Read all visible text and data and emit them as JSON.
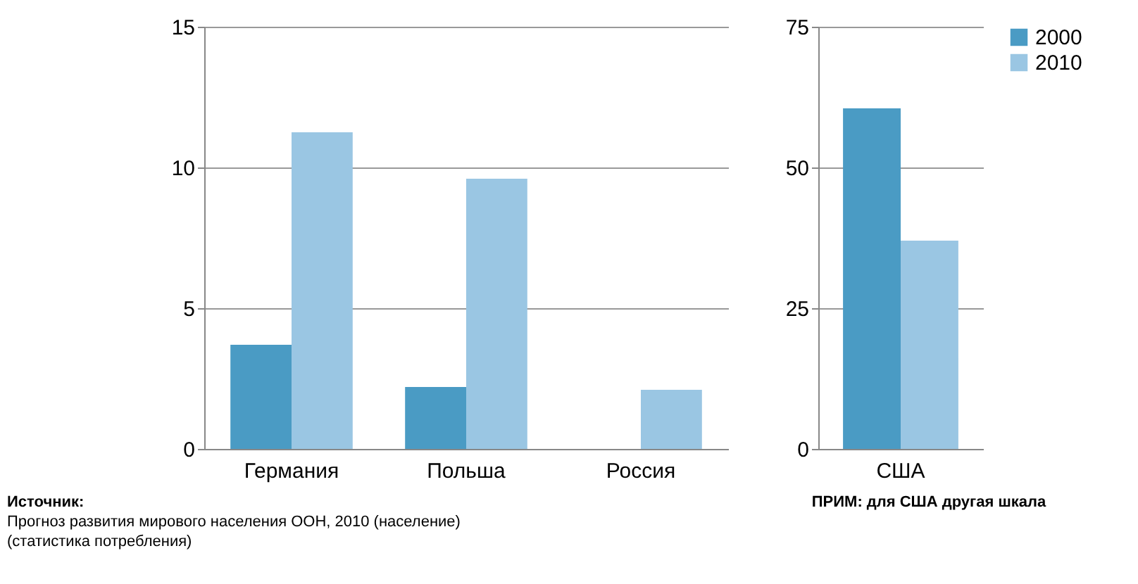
{
  "chart_data": [
    {
      "type": "bar",
      "categories": [
        "Германия",
        "Польша",
        "Россия"
      ],
      "series": [
        {
          "color": "#4a9bc4",
          "values": [
            3.7,
            2.2,
            null
          ]
        },
        {
          "color": "#9ac6e3",
          "values": [
            11.25,
            9.6,
            2.1
          ]
        }
      ],
      "ylim": [
        0,
        15
      ],
      "yticks": [
        0,
        5,
        10,
        15
      ],
      "grid": "y",
      "legend": false,
      "annotations": [
        "Источник:",
        "Прогноз развития мирового населения ООН, 2010 (население)",
        "(статистика потребления)"
      ]
    },
    {
      "type": "bar",
      "categories": [
        "США"
      ],
      "series": [
        {
          "name": "2000",
          "color": "#4a9bc4",
          "values": [
            60.5
          ]
        },
        {
          "name": "2010",
          "color": "#9ac6e3",
          "values": [
            37
          ]
        }
      ],
      "ylim": [
        0,
        75
      ],
      "yticks": [
        0,
        25,
        50,
        75
      ],
      "grid": "y",
      "legend": "right",
      "annotations": [
        "ПРИМ: для США другая шкала"
      ]
    }
  ]
}
